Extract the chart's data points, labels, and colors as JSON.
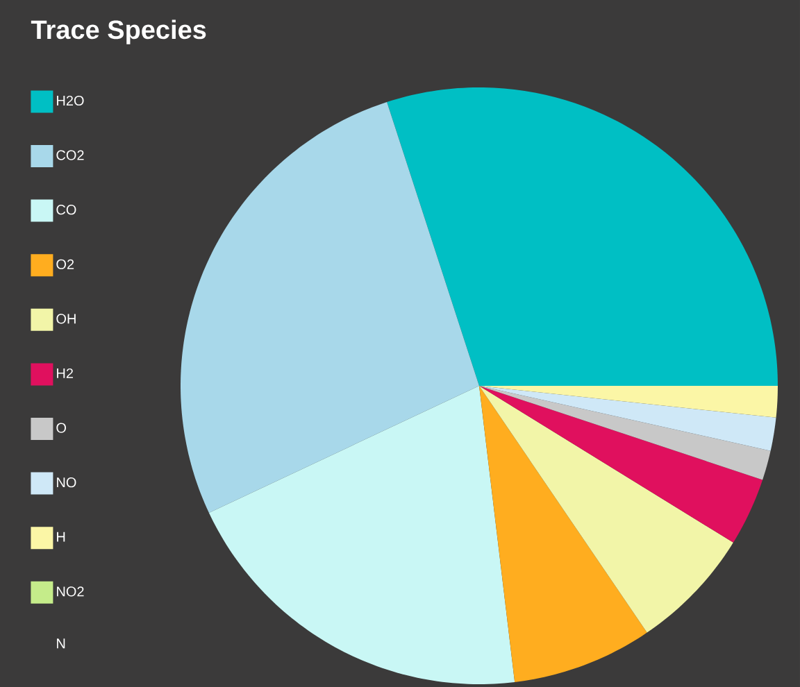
{
  "chart_data": {
    "type": "pie",
    "title": "Trace Species",
    "categories": [
      "H2O",
      "CO2",
      "CO",
      "O2",
      "OH",
      "H2",
      "O",
      "NO",
      "H",
      "NO2",
      "N"
    ],
    "values": [
      30,
      27,
      19.9,
      7.6,
      6.7,
      3.7,
      1.6,
      1.8,
      1.7,
      0,
      0
    ],
    "colors": [
      "#00bfc4",
      "#a8d8ea",
      "#c9f7f5",
      "#ffad1f",
      "#f2f5a8",
      "#e0105e",
      "#c8c8c8",
      "#cfe8f7",
      "#fbf6a6",
      "#c5ec8a",
      null
    ],
    "legend": "left"
  }
}
